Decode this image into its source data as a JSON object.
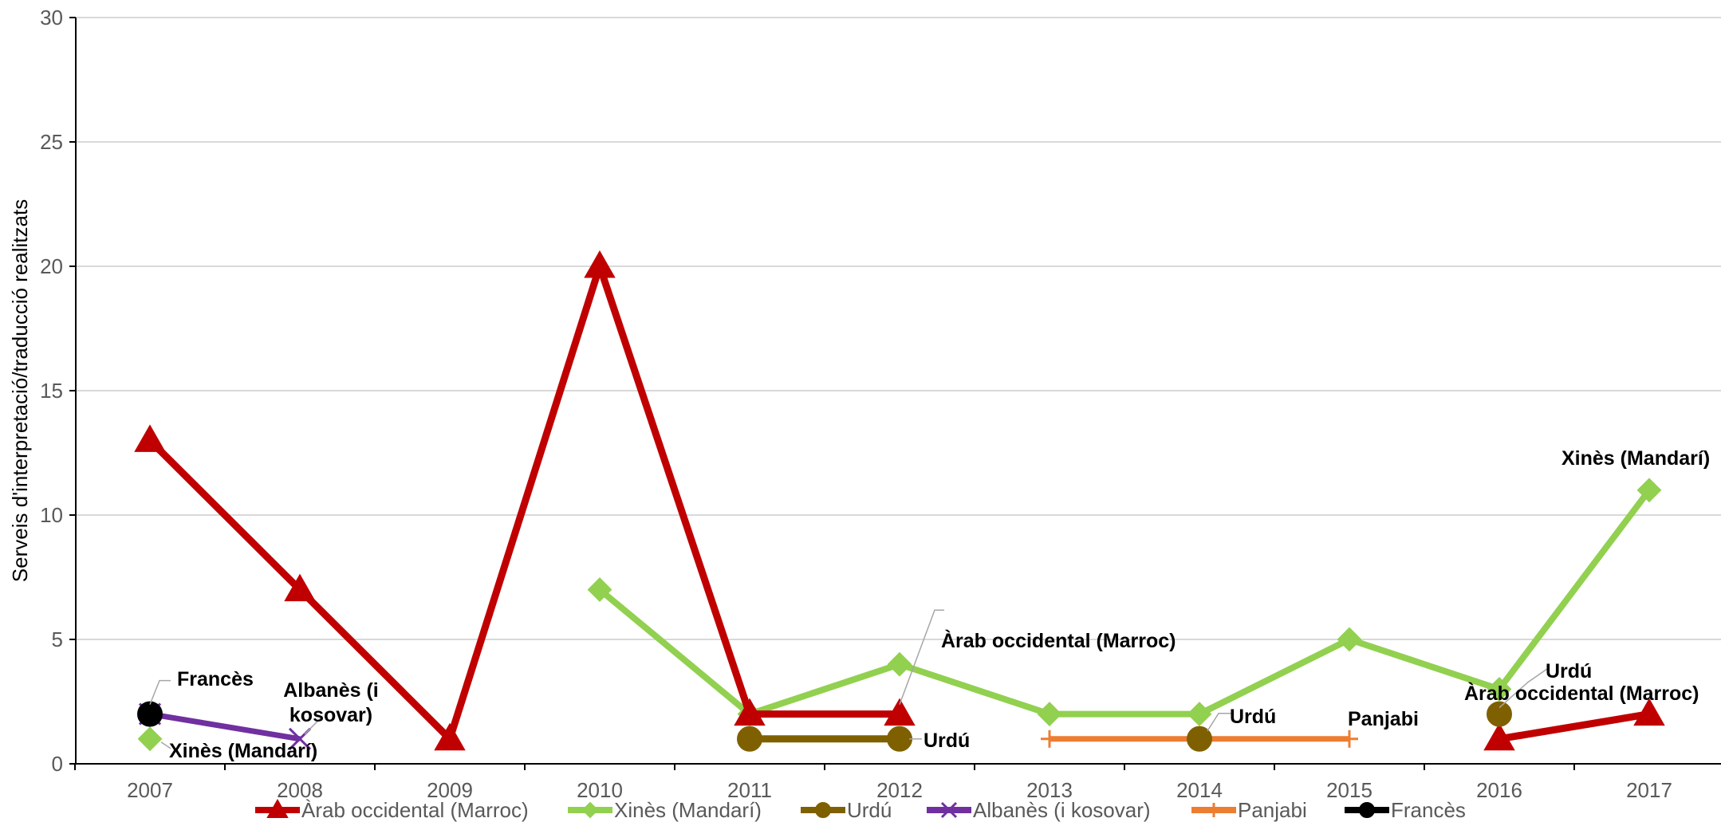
{
  "chart_data": {
    "type": "line",
    "ylabel": "Serveis d'interpretació/traducció realitzats",
    "ylim": [
      0,
      30
    ],
    "yticks": [
      "0",
      "5",
      "10",
      "15",
      "20",
      "25",
      "30"
    ],
    "categories": [
      "2007",
      "2008",
      "2009",
      "2010",
      "2011",
      "2012",
      "2013",
      "2014",
      "2015",
      "2016",
      "2017"
    ],
    "grid": true,
    "legend_position": "bottom",
    "series": [
      {
        "name": "Àrab occidental (Marroc)",
        "color": "#C00000",
        "marker": "triangle",
        "values": [
          13,
          7,
          1,
          20,
          2,
          2,
          null,
          null,
          null,
          1,
          2
        ]
      },
      {
        "name": "Xinès (Mandarí)",
        "color": "#92D050",
        "marker": "diamond",
        "values": [
          1,
          null,
          null,
          7,
          2,
          4,
          2,
          2,
          5,
          3,
          11
        ]
      },
      {
        "name": "Urdú",
        "color": "#7F6000",
        "marker": "circle",
        "values": [
          null,
          null,
          null,
          null,
          1,
          1,
          null,
          1,
          null,
          2,
          null
        ]
      },
      {
        "name": "Albanès (i kosovar)",
        "color": "#7030A0",
        "marker": "x",
        "values": [
          2,
          1,
          null,
          null,
          null,
          null,
          null,
          null,
          null,
          null,
          null
        ]
      },
      {
        "name": "Panjabi",
        "color": "#ED7D31",
        "marker": "plus",
        "values": [
          null,
          null,
          null,
          null,
          null,
          null,
          1,
          1,
          1,
          null,
          null
        ]
      },
      {
        "name": "Francès",
        "color": "#000000",
        "marker": "circle",
        "values": [
          2,
          null,
          null,
          null,
          null,
          null,
          null,
          null,
          null,
          null,
          null
        ]
      }
    ],
    "annotations": [
      {
        "text": "Francès",
        "series": 5,
        "category": "2007"
      },
      {
        "text": "Xinès (Mandarí)",
        "series": 1,
        "category": "2007"
      },
      {
        "text": "Albanès (i",
        "series": 3,
        "category": "2008"
      },
      {
        "text": "kosovar)",
        "series": 3,
        "category": "2008"
      },
      {
        "text": "Àrab occidental (Marroc)",
        "series": 0,
        "category": "2012"
      },
      {
        "text": "Urdú",
        "series": 2,
        "category": "2012"
      },
      {
        "text": "Urdú",
        "series": 2,
        "category": "2014"
      },
      {
        "text": "Panjabi",
        "series": 4,
        "category": "2015"
      },
      {
        "text": "Urdú",
        "series": 2,
        "category": "2016"
      },
      {
        "text": "Àrab occidental (Marroc)",
        "series": 0,
        "category": "2016"
      },
      {
        "text": "Xinès (Mandarí)",
        "series": 1,
        "category": "2017"
      }
    ]
  }
}
